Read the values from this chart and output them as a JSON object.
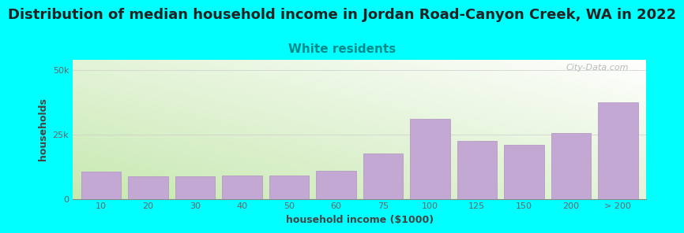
{
  "title": "Distribution of median household income in Jordan Road-Canyon Creek, WA in 2022",
  "subtitle": "White residents",
  "xlabel": "household income ($1000)",
  "ylabel": "households",
  "background_color": "#00FFFF",
  "bar_color": "#C4A8D4",
  "bar_edge_color": "#B090C0",
  "categories": [
    "10",
    "20",
    "30",
    "40",
    "50",
    "60",
    "75",
    "100",
    "125",
    "150",
    "200",
    "> 200"
  ],
  "values": [
    10500,
    8800,
    8800,
    9000,
    9000,
    11000,
    17500,
    31000,
    22500,
    21000,
    25500,
    37500
  ],
  "yticks": [
    0,
    25000,
    50000
  ],
  "ytick_labels": [
    "0",
    "25k",
    "50k"
  ],
  "ylim": [
    0,
    54000
  ],
  "title_fontsize": 13,
  "subtitle_fontsize": 11,
  "subtitle_color": "#008B8B",
  "title_color": "#222222",
  "axis_label_fontsize": 9,
  "tick_fontsize": 8,
  "watermark": "City-Data.com",
  "watermark_color": "#aaaaaa",
  "grad_left_bottom": "#c8e8b0",
  "grad_right_top": "#ffffff"
}
